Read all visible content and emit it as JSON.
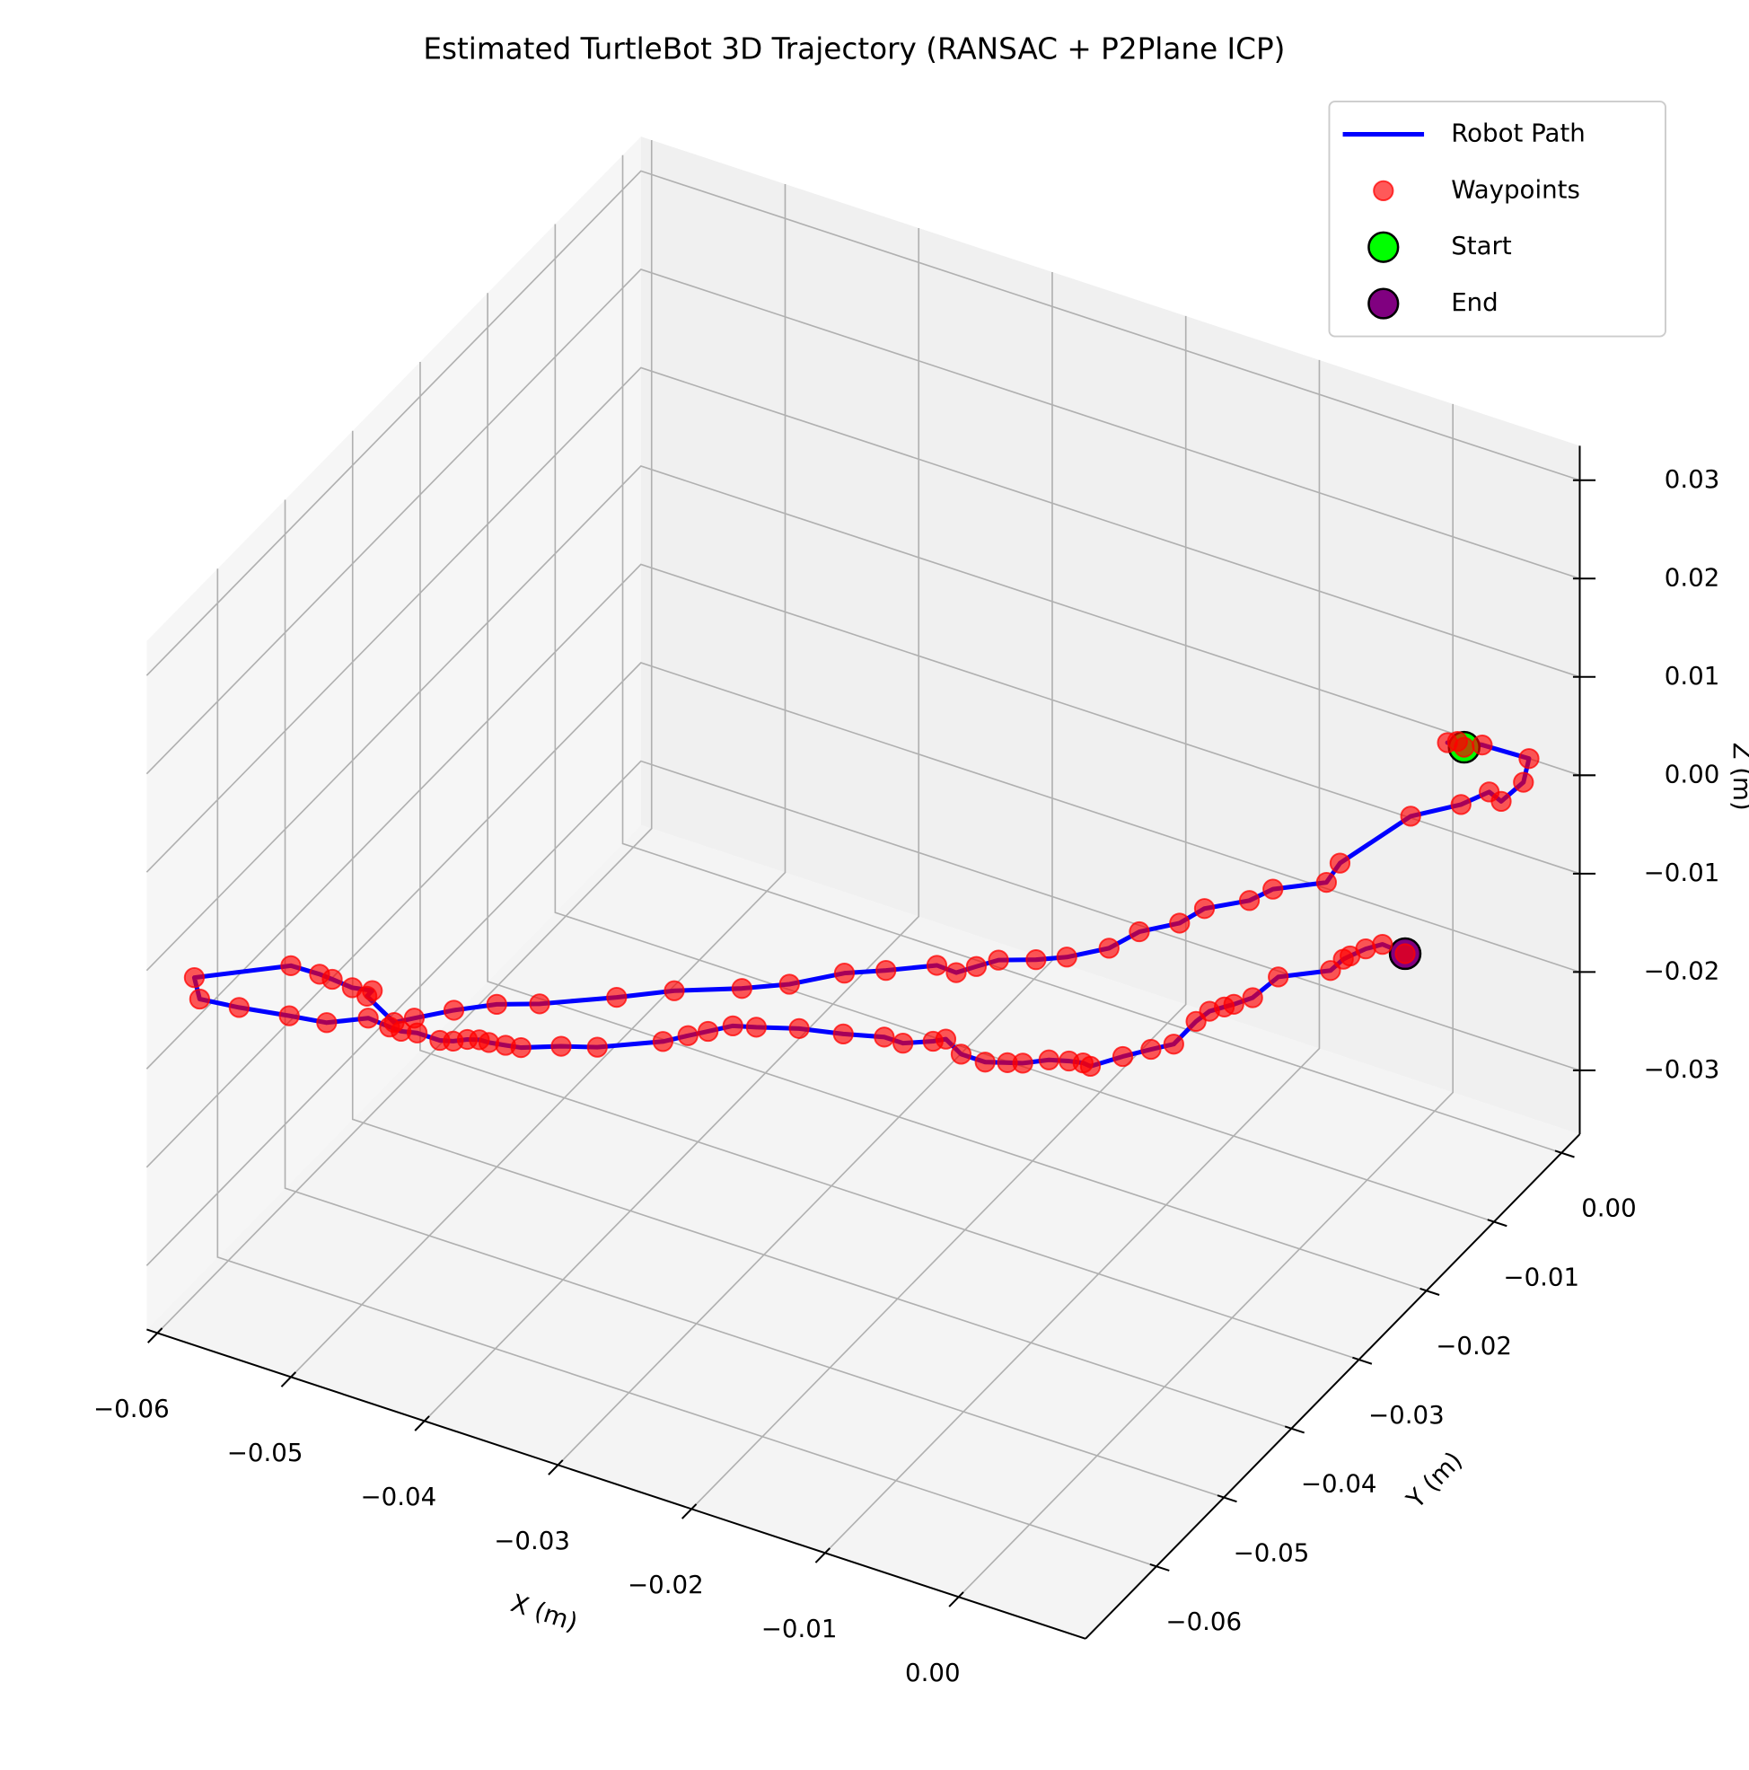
{
  "chart_data": {
    "type": "scatter3d",
    "title": "Estimated TurtleBot 3D Trajectory (RANSAC + P2Plane ICP)",
    "xlabel": "X (m)",
    "ylabel": "Y (m)",
    "zlabel": "Z (m)",
    "xlim": [
      -0.0608,
      0.0095
    ],
    "ylim": [
      -0.0705,
      0.0027
    ],
    "zlim": [
      -0.0365,
      0.0335
    ],
    "xticks": [
      {
        "value": -0.06,
        "label": "−0.06"
      },
      {
        "value": -0.05,
        "label": "−0.05"
      },
      {
        "value": -0.04,
        "label": "−0.04"
      },
      {
        "value": -0.03,
        "label": "−0.03"
      },
      {
        "value": -0.02,
        "label": "−0.02"
      },
      {
        "value": -0.01,
        "label": "−0.01"
      },
      {
        "value": 0,
        "label": "0.00"
      }
    ],
    "yticks": [
      {
        "value": -0.06,
        "label": "−0.06"
      },
      {
        "value": -0.05,
        "label": "−0.05"
      },
      {
        "value": -0.04,
        "label": "−0.04"
      },
      {
        "value": -0.03,
        "label": "−0.03"
      },
      {
        "value": -0.02,
        "label": "−0.02"
      },
      {
        "value": -0.01,
        "label": "−0.01"
      },
      {
        "value": 0,
        "label": "0.00"
      }
    ],
    "zticks": [
      {
        "value": -0.03,
        "label": "−0.03"
      },
      {
        "value": -0.02,
        "label": "−0.02"
      },
      {
        "value": -0.01,
        "label": "−0.01"
      },
      {
        "value": 0,
        "label": "0.00"
      },
      {
        "value": 0.01,
        "label": "0.01"
      },
      {
        "value": 0.02,
        "label": "0.02"
      },
      {
        "value": 0.03,
        "label": "0.03"
      }
    ],
    "grid": true,
    "legend": "upper right",
    "series": [
      {
        "name": "Robot Path",
        "color": "#0000ff"
      },
      {
        "name": "Waypoints",
        "color": "#ff0000"
      },
      {
        "name": "Start",
        "color": "#00ff00"
      },
      {
        "name": "End",
        "color": "#800080"
      }
    ],
    "x": [
      0.0014,
      0.0002,
      0.0007,
      0.0023,
      0.0057,
      0.0067,
      0.0065,
      0.0053,
      0.0044,
      0.0022,
      0.0008,
      0.0011,
      -0.0021,
      -0.0028,
      -0.0049,
      -0.0055,
      -0.0073,
      -0.0081,
      -0.01,
      -0.0116,
      -0.0137,
      -0.0146,
      -0.0154,
      -0.0169,
      -0.0195,
      -0.0217,
      -0.0242,
      -0.0272,
      -0.0309,
      -0.0338,
      -0.0378,
      -0.0402,
      -0.0423,
      -0.0441,
      -0.045,
      -0.048,
      -0.048,
      -0.0493,
      -0.0509,
      -0.0519,
      -0.054,
      -0.0588,
      -0.0584,
      -0.0557,
      -0.0524,
      -0.0499,
      -0.0478,
      -0.0461,
      -0.0463,
      -0.0453,
      -0.0436,
      -0.0428,
      -0.0421,
      -0.0414,
      -0.0418,
      -0.0407,
      -0.0397,
      -0.0375,
      -0.0354,
      -0.032,
      -0.032,
      -0.0311,
      -0.03,
      -0.0286,
      -0.0261,
      -0.0233,
      -0.0219,
      -0.0205,
      -0.0189,
      -0.0183,
      -0.0166,
      -0.0148,
      -0.0146,
      -0.0137,
      -0.0124,
      -0.0112,
      -0.0103,
      -0.0097,
      -0.0095,
      -0.0083,
      -0.0073,
      -0.0073,
      -0.0071,
      -0.0065,
      -0.0072,
      -0.0065,
      -0.0062,
      -0.0036,
      -0.0035,
      -0.0033,
      -0.0039,
      -0.0032,
      -0.0014
    ],
    "y": [
      0.0016,
      0.0015,
      0.002,
      0.0025,
      0.0027,
      -0.0001,
      -0.003,
      -0.0024,
      -0.0048,
      -0.0079,
      -0.0156,
      -0.0182,
      -0.0198,
      -0.0219,
      -0.0244,
      -0.0269,
      -0.0293,
      -0.0322,
      -0.0347,
      -0.0361,
      -0.0375,
      -0.039,
      -0.0404,
      -0.0403,
      -0.0427,
      -0.0445,
      -0.0477,
      -0.0488,
      -0.0515,
      -0.0543,
      -0.0578,
      -0.0594,
      -0.0616,
      -0.0639,
      -0.0651,
      -0.0632,
      -0.0624,
      -0.0628,
      -0.0626,
      -0.0625,
      -0.0626,
      -0.0674,
      -0.0674,
      -0.0669,
      -0.066,
      -0.0654,
      -0.0634,
      -0.0636,
      -0.0615,
      -0.0611,
      -0.0611,
      -0.0607,
      -0.06,
      -0.0596,
      -0.0574,
      -0.0571,
      -0.0568,
      -0.0552,
      -0.054,
      -0.051,
      -0.0473,
      -0.0461,
      -0.0446,
      -0.0439,
      -0.0425,
      -0.0415,
      -0.0382,
      -0.0382,
      -0.0369,
      -0.0362,
      -0.0373,
      -0.0373,
      -0.0344,
      -0.0339,
      -0.0326,
      -0.032,
      -0.0317,
      -0.0318,
      -0.0274,
      -0.0256,
      -0.0242,
      -0.0209,
      -0.0193,
      -0.0183,
      -0.0155,
      -0.0141,
      -0.0109,
      -0.0083,
      -0.0066,
      -0.006,
      -0.0025,
      -0.0014,
      -0.0016
    ],
    "z": [
      0,
      0,
      0,
      0,
      0,
      0,
      0,
      0,
      0,
      0,
      0,
      0,
      -0.001,
      -0.001,
      -0.001,
      -0.001,
      -0.001,
      -0.001,
      -0.001,
      -0.001,
      -0.001,
      -0.001,
      -0.001,
      -0.001,
      -0.001,
      -0.001,
      -0.001,
      -0.002,
      -0.002,
      -0.002,
      -0.002,
      -0.002,
      -0.002,
      -0.002,
      -0.002,
      -0.002,
      -0.002,
      -0.002,
      -0.002,
      -0.002,
      -0.002,
      -0.002,
      -0.004,
      -0.004,
      -0.004,
      -0.004,
      -0.004,
      -0.004,
      -0.006,
      -0.006,
      -0.006,
      -0.006,
      -0.006,
      -0.006,
      -0.008,
      -0.008,
      -0.008,
      -0.008,
      -0.008,
      -0.008,
      -0.01,
      -0.01,
      -0.01,
      -0.01,
      -0.01,
      -0.01,
      -0.012,
      -0.012,
      -0.012,
      -0.012,
      -0.012,
      -0.012,
      -0.014,
      -0.014,
      -0.014,
      -0.014,
      -0.014,
      -0.014,
      -0.016,
      -0.016,
      -0.016,
      -0.016,
      -0.016,
      -0.016,
      -0.018,
      -0.018,
      -0.018,
      -0.018,
      -0.018,
      -0.018,
      -0.02,
      -0.02,
      -0.02
    ]
  }
}
